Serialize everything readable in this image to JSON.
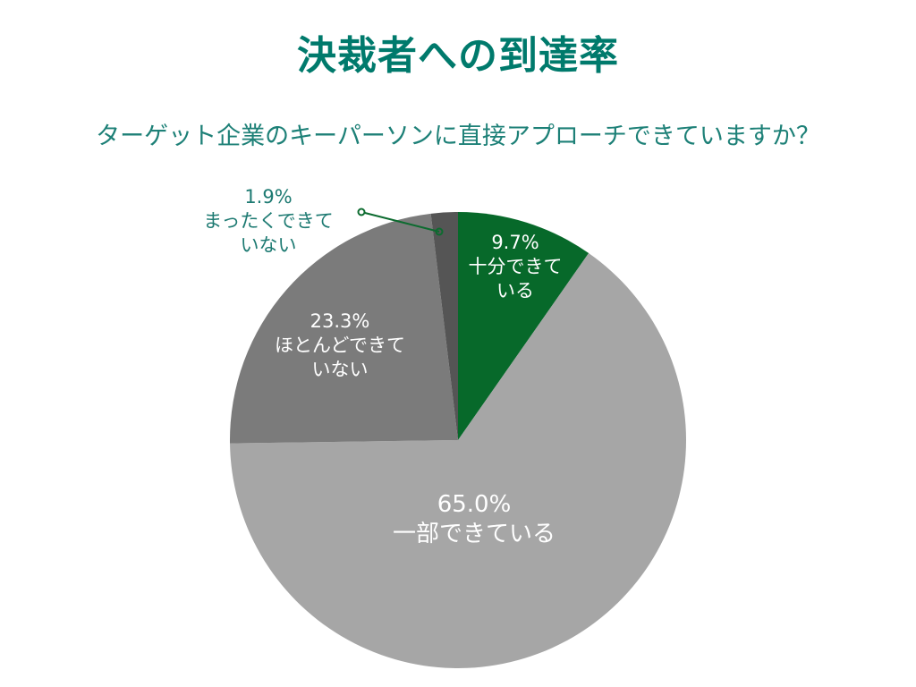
{
  "title": "決裁者への到達率",
  "subtitle": "ターゲット企業のキーパーソンに直接アプローチできていますか？",
  "colors": {
    "title": "#007a6c",
    "subtitle": "#1d8077",
    "slice_enough": "#07692a",
    "slice_partial": "#a6a6a6",
    "slice_mostly_not": "#7b7b7b",
    "slice_not_at_all": "#555555",
    "leader_line": "#0c6b2f"
  },
  "labels": {
    "enough": {
      "pct": "9.7%",
      "line1": "十分できて",
      "line2": "いる"
    },
    "partial": {
      "pct": "65.0%",
      "line1": "一部できている"
    },
    "mostly_not": {
      "pct": "23.3%",
      "line1": "ほとんどできて",
      "line2": "いない"
    },
    "not_at_all": {
      "pct": "1.9%",
      "line1": "まったくできて",
      "line2": "いない"
    }
  },
  "chart_data": {
    "type": "pie",
    "title": "決裁者への到達率",
    "subtitle": "ターゲット企業のキーパーソンに直接アプローチできていますか？",
    "start_angle": "12 o'clock, clockwise",
    "categories": [
      "十分できている",
      "一部できている",
      "ほとんどできていない",
      "まったくできていない"
    ],
    "values": [
      9.7,
      65.0,
      23.3,
      1.9
    ],
    "unit": "%",
    "colors": [
      "#07692a",
      "#a6a6a6",
      "#7b7b7b",
      "#555555"
    ],
    "legend": "none (data labels on slices)"
  }
}
